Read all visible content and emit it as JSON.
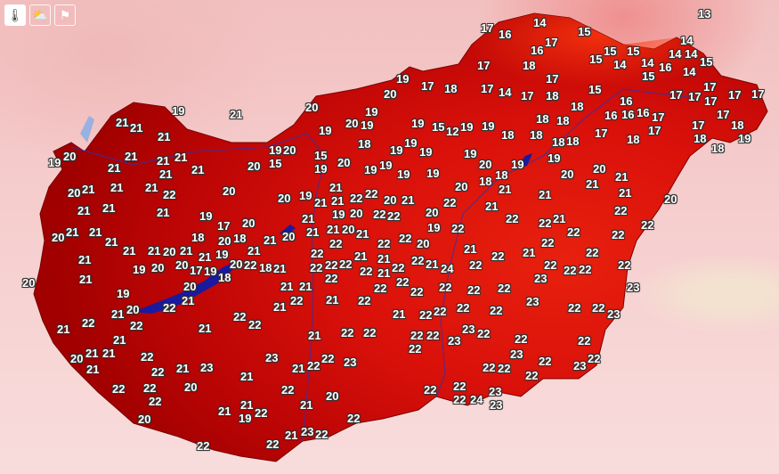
{
  "controls": [
    {
      "name": "temperature-layer",
      "icon": "thermometer-icon",
      "glyph": "🌡",
      "active": true
    },
    {
      "name": "weather-layer",
      "icon": "cloud-sun-icon",
      "glyph": "⛅",
      "active": false
    },
    {
      "name": "wind-layer",
      "icon": "flag-icon",
      "glyph": "⚑",
      "active": false
    }
  ],
  "colors": {
    "hot": "#e0180c",
    "warm": "#a80000",
    "water": "#1a1aa0",
    "background": "#f4cccc"
  },
  "temperatures": [
    "17",
    "14",
    "13",
    "16",
    "17",
    "16",
    "15",
    "15",
    "14",
    "14",
    "15",
    "14",
    "15",
    "14",
    "15",
    "16",
    "14",
    "15",
    "14",
    "17",
    "18",
    "17",
    "17",
    "14",
    "17",
    "18",
    "16",
    "15",
    "16",
    "17",
    "17",
    "17",
    "17",
    "17",
    "17",
    "19",
    "17",
    "18",
    "20",
    "20",
    "19",
    "21",
    "19",
    "20",
    "19",
    "19",
    "15",
    "12",
    "19",
    "19",
    "18",
    "18",
    "18",
    "16",
    "16",
    "17",
    "17",
    "18",
    "17",
    "18",
    "19",
    "18",
    "17",
    "18",
    "17",
    "18",
    "18",
    "18",
    "18",
    "19",
    "18",
    "19",
    "19",
    "19",
    "19",
    "21",
    "21",
    "21",
    "20",
    "19",
    "21",
    "21",
    "21",
    "21",
    "21",
    "21",
    "20",
    "19",
    "20",
    "15",
    "15",
    "20",
    "19",
    "19",
    "19",
    "19",
    "20",
    "19",
    "19",
    "20",
    "20",
    "21",
    "21",
    "21",
    "20",
    "22",
    "22",
    "22",
    "23",
    "22",
    "21",
    "20",
    "21",
    "21",
    "22",
    "20",
    "21",
    "21",
    "21",
    "19",
    "20",
    "17",
    "18",
    "21",
    "21",
    "20",
    "21",
    "18",
    "21",
    "21",
    "21",
    "20",
    "21",
    "21",
    "20",
    "19",
    "20",
    "20",
    "17",
    "19",
    "20",
    "20",
    "21",
    "22",
    "21",
    "22",
    "22",
    "21",
    "21",
    "21",
    "22",
    "20",
    "21",
    "21",
    "21",
    "22",
    "21",
    "23",
    "22",
    "22",
    "22",
    "20",
    "21",
    "20",
    "21",
    "21",
    "19",
    "22",
    "22",
    "22",
    "21",
    "23",
    "22",
    "22",
    "21",
    "20",
    "22",
    "21",
    "22",
    "23",
    "22",
    "23",
    "22",
    "24",
    "23",
    "23",
    "22",
    "22",
    "22",
    "22",
    "23",
    "22",
    "22",
    "23",
    "22",
    "22",
    "22",
    "22",
    "23",
    "23",
    "22",
    "22",
    "22",
    "21",
    "22",
    "22",
    "22",
    "22",
    "23",
    "22",
    "22",
    "23",
    "22",
    "22",
    "22",
    "22",
    "22",
    "22",
    "22",
    "22",
    "21",
    "24",
    "22",
    "22",
    "21",
    "22",
    "22",
    "23",
    "22",
    "22",
    "22",
    "22",
    "22",
    "21",
    "22",
    "21",
    "21",
    "22",
    "21",
    "22",
    "21",
    "18",
    "18",
    "20",
    "20",
    "21",
    "20",
    "20",
    "22",
    "19",
    "22",
    "21",
    "22",
    "22",
    "20",
    "22",
    "19",
    "20",
    "22",
    "21",
    "21",
    "21",
    "21",
    "19",
    "21",
    "21",
    "22",
    "22",
    "22",
    "22",
    "22",
    "22",
    "21",
    "22",
    "21",
    "21",
    "22",
    "21",
    "21",
    "20",
    "20",
    "21",
    "21",
    "21",
    "22",
    "21",
    "22",
    "22",
    "22",
    "22",
    "21",
    "20",
    "19",
    "19",
    "20",
    "22",
    "21",
    "21",
    "18",
    "18",
    "19",
    "14"
  ]
}
